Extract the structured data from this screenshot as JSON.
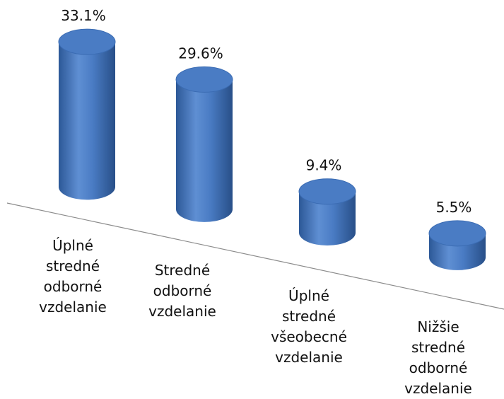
{
  "chart_data": {
    "type": "cylinder",
    "categories": [
      "Úplné stredné odborné vzdelanie",
      "Stredné odborné vzdelanie",
      "Úplné stredné všeobecné vzdelanie",
      "Nižšie stredné odborné vzdelanie"
    ],
    "values": [
      33.1,
      29.6,
      9.4,
      5.5
    ],
    "value_labels": [
      "33.1%",
      "29.6%",
      "9.4%",
      "5.5%"
    ],
    "color": "#4a7cc4"
  }
}
